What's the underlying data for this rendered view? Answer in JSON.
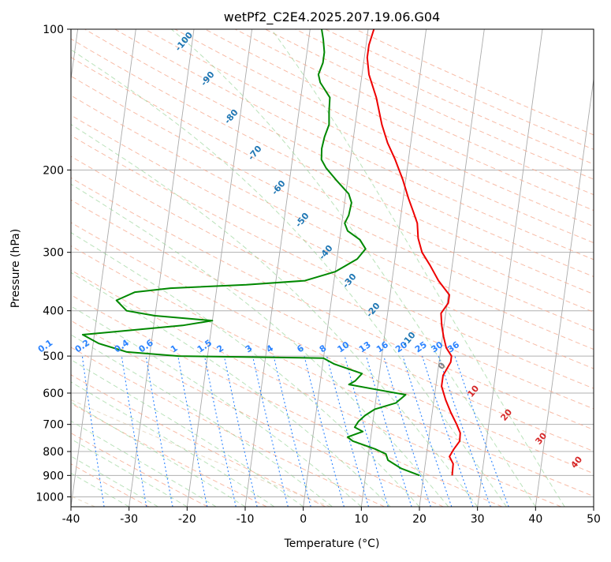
{
  "chart_data": {
    "type": "line",
    "subtype": "skew-t log-p diagram",
    "title": "wetPf2_C2E4.2025.207.19.06.G04",
    "xlabel": "Temperature (°C)",
    "ylabel": "Pressure (hPa)",
    "xlim": [
      -40,
      50
    ],
    "ylim": [
      1050,
      100
    ],
    "y_scale": "log",
    "x_ticks": [
      -40,
      -30,
      -20,
      -10,
      0,
      10,
      20,
      30,
      40,
      50
    ],
    "y_ticks": [
      100,
      200,
      300,
      400,
      500,
      600,
      700,
      800,
      900,
      1000
    ],
    "grid": true,
    "series": [
      {
        "color": "#ee0000",
        "points": [
          [
            900,
            24.9
          ],
          [
            850,
            24.8
          ],
          [
            820,
            24.0
          ],
          [
            790,
            24.6
          ],
          [
            760,
            25.4
          ],
          [
            730,
            25.3
          ],
          [
            700,
            24.5
          ],
          [
            660,
            23.2
          ],
          [
            620,
            22.0
          ],
          [
            580,
            21.0
          ],
          [
            550,
            21.0
          ],
          [
            515,
            22.0
          ],
          [
            500,
            22.0
          ],
          [
            480,
            20.9
          ],
          [
            455,
            20.2
          ],
          [
            430,
            19.6
          ],
          [
            405,
            19.2
          ],
          [
            385,
            20.2
          ],
          [
            370,
            20.2
          ],
          [
            345,
            18.0
          ],
          [
            320,
            16.2
          ],
          [
            300,
            14.5
          ],
          [
            280,
            13.5
          ],
          [
            260,
            13.0
          ],
          [
            245,
            12.0
          ],
          [
            230,
            10.9
          ],
          [
            210,
            9.5
          ],
          [
            190,
            7.7
          ],
          [
            175,
            6.0
          ],
          [
            160,
            4.6
          ],
          [
            140,
            3.0
          ],
          [
            125,
            1.2
          ],
          [
            115,
            0.5
          ],
          [
            108,
            0.5
          ],
          [
            100,
            1.0
          ]
        ]
      },
      {
        "color": "#008800",
        "points": [
          [
            900,
            19.3
          ],
          [
            870,
            16.0
          ],
          [
            835,
            13.5
          ],
          [
            810,
            13.0
          ],
          [
            790,
            11.0
          ],
          [
            760,
            7.0
          ],
          [
            745,
            6.0
          ],
          [
            725,
            8.5
          ],
          [
            710,
            7.0
          ],
          [
            690,
            7.5
          ],
          [
            670,
            8.5
          ],
          [
            650,
            10.0
          ],
          [
            630,
            13.5
          ],
          [
            605,
            15.0
          ],
          [
            590,
            10.0
          ],
          [
            575,
            5.0
          ],
          [
            565,
            6.0
          ],
          [
            545,
            7.0
          ],
          [
            520,
            2.0
          ],
          [
            505,
            0.0
          ],
          [
            500,
            -25.0
          ],
          [
            490,
            -34.0
          ],
          [
            470,
            -39.0
          ],
          [
            450,
            -42.0
          ],
          [
            430,
            -25.0
          ],
          [
            420,
            -20.0
          ],
          [
            410,
            -30.0
          ],
          [
            400,
            -35.0
          ],
          [
            380,
            -37.0
          ],
          [
            365,
            -34.0
          ],
          [
            358,
            -28.0
          ],
          [
            352,
            -15.0
          ],
          [
            345,
            -5.0
          ],
          [
            330,
            0.0
          ],
          [
            310,
            3.5
          ],
          [
            295,
            4.7
          ],
          [
            282,
            3.5
          ],
          [
            270,
            1.2
          ],
          [
            260,
            0.5
          ],
          [
            250,
            1.0
          ],
          [
            235,
            1.2
          ],
          [
            225,
            0.5
          ],
          [
            210,
            -2.0
          ],
          [
            198,
            -4.0
          ],
          [
            190,
            -5.0
          ],
          [
            180,
            -5.2
          ],
          [
            170,
            -5.0
          ],
          [
            160,
            -4.5
          ],
          [
            150,
            -4.8
          ],
          [
            140,
            -5.0
          ],
          [
            130,
            -7.0
          ],
          [
            125,
            -7.5
          ],
          [
            118,
            -7.0
          ],
          [
            112,
            -7.0
          ],
          [
            105,
            -7.5
          ],
          [
            100,
            -8.0
          ]
        ]
      }
    ],
    "dry_adiabat_labels": [
      "-100",
      "-90",
      "-80",
      "-70",
      "-60",
      "-50",
      "-40",
      "-30",
      "-20",
      "-10",
      "0",
      "10",
      "20",
      "30",
      "40"
    ],
    "mixing_ratio_labels": [
      "0.1",
      "0.2",
      "0.4",
      "0.6",
      "1",
      "1.5",
      "2",
      "3",
      "4",
      "6",
      "8",
      "10",
      "13",
      "16",
      "20",
      "25",
      "30",
      "36"
    ]
  }
}
